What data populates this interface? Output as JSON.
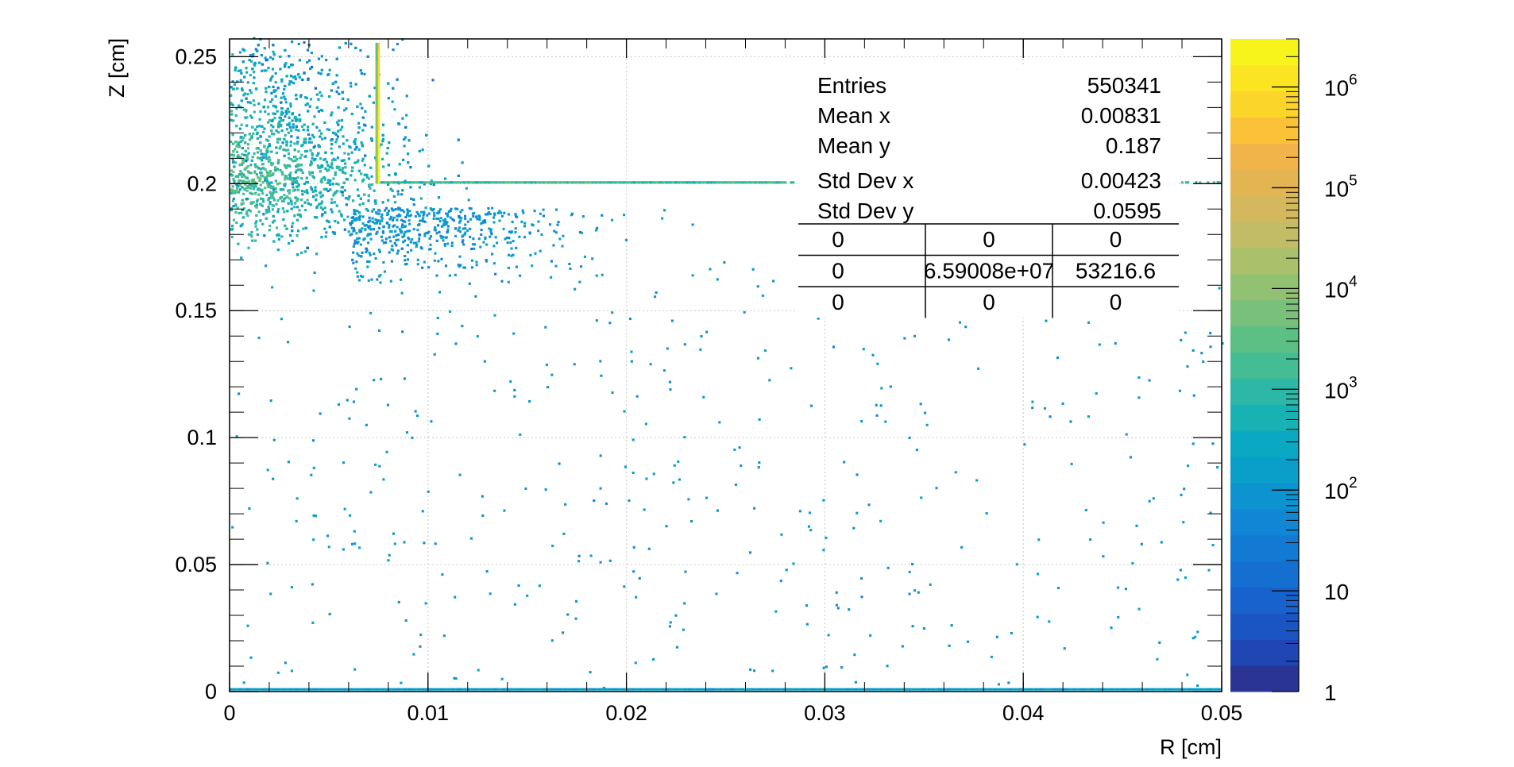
{
  "chart_data": {
    "type": "heatmap",
    "title": "",
    "xlabel": "R [cm]",
    "ylabel": "Z [cm]",
    "xlim": [
      0,
      0.05
    ],
    "ylim": [
      0,
      0.257
    ],
    "x_ticks": [
      "0",
      "0.01",
      "0.02",
      "0.03",
      "0.04",
      "0.05"
    ],
    "x_tick_values": [
      0,
      0.01,
      0.02,
      0.03,
      0.04,
      0.05
    ],
    "y_ticks": [
      "0",
      "0.05",
      "0.1",
      "0.15",
      "0.2",
      "0.25"
    ],
    "y_tick_values": [
      0,
      0.05,
      0.1,
      0.15,
      0.2,
      0.25
    ],
    "grid": true,
    "colorbar": {
      "scale": "log",
      "range": [
        1,
        3000000
      ],
      "tick_labels": [
        "1",
        "10",
        "10^2",
        "10^3",
        "10^4",
        "10^5",
        "10^6"
      ],
      "tick_values": [
        1,
        10,
        100,
        1000,
        10000,
        100000,
        1000000
      ],
      "palette": [
        "#2a3492",
        "#1f46b4",
        "#1b55c4",
        "#1762cc",
        "#156fd1",
        "#137ad4",
        "#1186d4",
        "#0d93cf",
        "#0a9fc9",
        "#0aa8c2",
        "#18b1b4",
        "#2db7a6",
        "#44bd94",
        "#5cbf84",
        "#79c07a",
        "#93c172",
        "#aac06b",
        "#c1bc65",
        "#d3b85e",
        "#e2b452",
        "#f1b44a",
        "#fbc138",
        "#fcd52b",
        "#fbe522",
        "#f7f41b"
      ]
    },
    "features": {
      "vertical_band": {
        "r": 0.00745,
        "z_from": 0.2,
        "z_to": 0.255,
        "counts": "~1e6"
      },
      "horizontal_line": {
        "z": 0.2,
        "r_from": 0.00745,
        "r_to": 0.05,
        "counts": "~1e3"
      },
      "dense_cluster": {
        "r_range": [
          0,
          0.015
        ],
        "z_range": [
          0.17,
          0.257
        ],
        "counts": "10^2-10^4"
      },
      "bottom_line": {
        "z": 0,
        "r_from": 0,
        "r_to": 0.05,
        "counts": "~10^2"
      },
      "sparse_hits": {
        "r_range": [
          0,
          0.05
        ],
        "z_range": [
          0,
          0.17
        ],
        "counts": "1-10^2"
      }
    },
    "stats_box": {
      "rows": [
        {
          "label": "Entries",
          "value": "550341"
        },
        {
          "label": "Mean x",
          "value": "0.00831"
        },
        {
          "label": "Mean y",
          "value": "0.187"
        },
        {
          "label": "Std Dev x",
          "value": "0.00423"
        },
        {
          "label": "Std Dev y",
          "value": "0.0595"
        }
      ],
      "table": [
        [
          "0",
          "0",
          "0"
        ],
        [
          "0",
          "6.59008e+07",
          "53216.6"
        ],
        [
          "0",
          "0",
          "0"
        ]
      ]
    }
  }
}
